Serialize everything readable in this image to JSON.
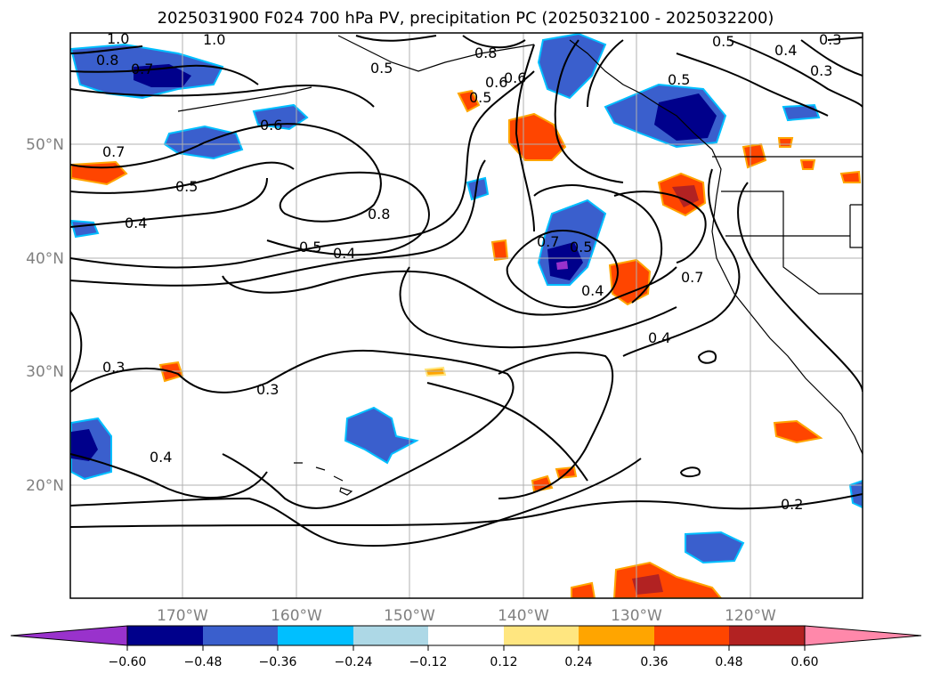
{
  "title": "2025031900 F024 700 hPa PV, precipitation PC (2025032100 - 2025032200)",
  "lat_ticks": [
    "50°N",
    "40°N",
    "30°N",
    "20°N"
  ],
  "lon_ticks": [
    "170°W",
    "160°W",
    "150°W",
    "140°W",
    "130°W",
    "120°W"
  ],
  "colorbar": {
    "tick_labels": [
      "−0.60",
      "−0.48",
      "−0.36",
      "−0.24",
      "−0.12",
      "0.12",
      "0.24",
      "0.36",
      "0.48",
      "0.60"
    ],
    "colors": [
      "#9932cc",
      "#00008b",
      "#3a5fcd",
      "#00bfff",
      "#add8e6",
      "#ffffff",
      "#ffe680",
      "#ffa500",
      "#ff4500",
      "#b22222",
      "#ff88aa"
    ]
  },
  "contour_labels": [
    "1.0",
    "1.0",
    "0.8",
    "0.7",
    "0.6",
    "0.7",
    "0.5",
    "0.4",
    "0.8",
    "0.5",
    "0.4",
    "0.3",
    "0.3",
    "0.4",
    "0.5",
    "0.8",
    "0.5",
    "0.6",
    "0.6",
    "0.5",
    "0.7",
    "0.5",
    "0.4",
    "0.7",
    "0.4",
    "0.2",
    "0.5",
    "0.4",
    "0.3",
    "0.3"
  ]
}
